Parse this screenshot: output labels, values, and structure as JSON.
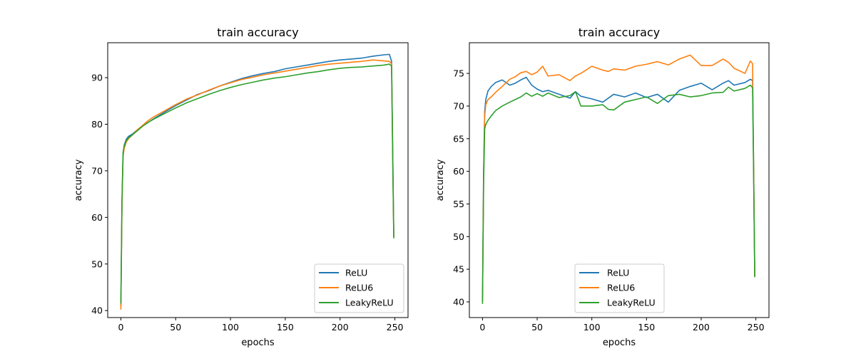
{
  "colors": {
    "ReLU": "#1f77b4",
    "ReLU6": "#ff7f0e",
    "LeakyReLU": "#2ca02c"
  },
  "chart_data": [
    {
      "type": "line",
      "title": "train accuracy",
      "xlabel": "epochs",
      "ylabel": "accuracy",
      "xlim": [
        -12,
        262
      ],
      "ylim": [
        38.5,
        97.5
      ],
      "xticks": [
        0,
        50,
        100,
        150,
        200,
        250
      ],
      "yticks": [
        40,
        50,
        60,
        70,
        80,
        90
      ],
      "legend_position": "lower right",
      "series": [
        {
          "name": "ReLU",
          "color": "#1f77b4",
          "x": [
            0,
            1,
            2,
            3,
            5,
            7,
            10,
            15,
            20,
            25,
            30,
            40,
            50,
            60,
            70,
            80,
            90,
            100,
            110,
            120,
            130,
            140,
            150,
            160,
            170,
            180,
            190,
            200,
            210,
            220,
            230,
            240,
            245,
            247,
            248,
            249
          ],
          "y": [
            41,
            63,
            73.5,
            75.5,
            76.8,
            77.4,
            77.8,
            78.8,
            79.7,
            80.4,
            81.2,
            82.6,
            84,
            85.2,
            86.4,
            87.2,
            88.2,
            89,
            89.8,
            90.4,
            90.9,
            91.3,
            91.9,
            92.3,
            92.7,
            93.1,
            93.5,
            93.8,
            94,
            94.2,
            94.6,
            94.9,
            95,
            93.5,
            75,
            55.8
          ]
        },
        {
          "name": "ReLU6",
          "color": "#ff7f0e",
          "x": [
            0,
            1,
            2,
            3,
            5,
            7,
            10,
            15,
            20,
            25,
            30,
            40,
            50,
            60,
            70,
            80,
            90,
            100,
            110,
            120,
            130,
            140,
            150,
            160,
            170,
            180,
            190,
            200,
            210,
            220,
            230,
            240,
            245,
            247,
            248,
            249
          ],
          "y": [
            40.2,
            62,
            73,
            74.8,
            76.2,
            76.9,
            77.6,
            78.8,
            79.8,
            80.8,
            81.6,
            82.9,
            84.2,
            85.4,
            86.3,
            87.3,
            88.2,
            88.9,
            89.6,
            90.1,
            90.6,
            91,
            91.4,
            91.8,
            92.2,
            92.6,
            92.9,
            93.1,
            93.3,
            93.5,
            93.8,
            93.6,
            93.5,
            93,
            74,
            55.8
          ]
        },
        {
          "name": "LeakyReLU",
          "color": "#2ca02c",
          "x": [
            0,
            1,
            2,
            3,
            5,
            7,
            10,
            15,
            20,
            25,
            30,
            40,
            50,
            60,
            70,
            80,
            90,
            100,
            110,
            120,
            130,
            140,
            150,
            160,
            170,
            180,
            190,
            200,
            210,
            220,
            230,
            240,
            245,
            247,
            248,
            249
          ],
          "y": [
            41.5,
            63.5,
            74,
            75.3,
            76.5,
            77.1,
            77.6,
            78.6,
            79.6,
            80.4,
            81.1,
            82.3,
            83.5,
            84.6,
            85.5,
            86.4,
            87.2,
            87.9,
            88.5,
            89,
            89.5,
            89.9,
            90.2,
            90.6,
            91,
            91.3,
            91.7,
            92,
            92.2,
            92.3,
            92.5,
            92.7,
            92.9,
            92.5,
            73,
            55.5
          ]
        }
      ]
    },
    {
      "type": "line",
      "title": "train accuracy",
      "xlabel": "epochs",
      "ylabel": "accuracy",
      "xlim": [
        -12,
        262
      ],
      "ylim": [
        37.6,
        79.7
      ],
      "xticks": [
        0,
        50,
        100,
        150,
        200,
        250
      ],
      "yticks": [
        40,
        45,
        50,
        55,
        60,
        65,
        70,
        75
      ],
      "legend_position": "lower center",
      "series": [
        {
          "name": "ReLU",
          "color": "#1f77b4",
          "x": [
            0,
            1,
            2,
            3,
            5,
            8,
            12,
            18,
            25,
            30,
            35,
            40,
            45,
            50,
            55,
            60,
            70,
            80,
            85,
            90,
            100,
            110,
            115,
            120,
            130,
            140,
            150,
            160,
            170,
            180,
            190,
            200,
            210,
            220,
            225,
            230,
            240,
            245,
            247,
            248,
            249
          ],
          "y": [
            40.2,
            60,
            69.2,
            71,
            72.3,
            73,
            73.6,
            74,
            73.2,
            73.5,
            74,
            74.4,
            73.2,
            72.6,
            72.2,
            72.4,
            71.8,
            71.2,
            72.2,
            71.5,
            71.1,
            70.6,
            71.2,
            71.8,
            71.4,
            72,
            71.3,
            71.8,
            70.6,
            72.4,
            73,
            73.5,
            72.5,
            73.5,
            73.9,
            73.2,
            73.6,
            74.1,
            73.9,
            60,
            43.8
          ]
        },
        {
          "name": "ReLU6",
          "color": "#ff7f0e",
          "x": [
            0,
            1,
            2,
            3,
            5,
            8,
            12,
            18,
            25,
            30,
            35,
            40,
            45,
            50,
            55,
            60,
            70,
            80,
            85,
            90,
            100,
            110,
            115,
            120,
            130,
            140,
            150,
            160,
            170,
            180,
            190,
            200,
            210,
            220,
            225,
            230,
            240,
            245,
            247,
            248,
            249
          ],
          "y": [
            40,
            59,
            68.5,
            70.2,
            71,
            71.4,
            72.1,
            73,
            74.1,
            74.5,
            75.1,
            75.3,
            74.8,
            75.2,
            76.1,
            74.6,
            74.8,
            73.9,
            74.6,
            75,
            76.1,
            75.5,
            75.3,
            75.7,
            75.5,
            76.1,
            76.4,
            76.8,
            76.3,
            77.2,
            77.8,
            76.2,
            76.2,
            77.2,
            76.7,
            75.8,
            75,
            76.9,
            76.5,
            60,
            43.8
          ]
        },
        {
          "name": "LeakyReLU",
          "color": "#2ca02c",
          "x": [
            0,
            1,
            2,
            3,
            5,
            8,
            12,
            18,
            25,
            30,
            35,
            40,
            45,
            50,
            55,
            60,
            70,
            80,
            85,
            90,
            100,
            110,
            115,
            120,
            130,
            140,
            150,
            160,
            170,
            180,
            190,
            200,
            210,
            220,
            225,
            230,
            240,
            245,
            247,
            248,
            249
          ],
          "y": [
            39.7,
            58,
            66.5,
            67.2,
            67.8,
            68.5,
            69.3,
            70,
            70.6,
            71,
            71.4,
            72,
            71.5,
            71.9,
            71.5,
            72,
            71.3,
            71.6,
            72.2,
            70,
            70,
            70.2,
            69.5,
            69.4,
            70.6,
            71,
            71.4,
            70.4,
            71.6,
            71.8,
            71.4,
            71.6,
            72,
            72.1,
            72.9,
            72.3,
            72.7,
            73.2,
            72.8,
            59,
            43.8
          ]
        }
      ]
    }
  ]
}
